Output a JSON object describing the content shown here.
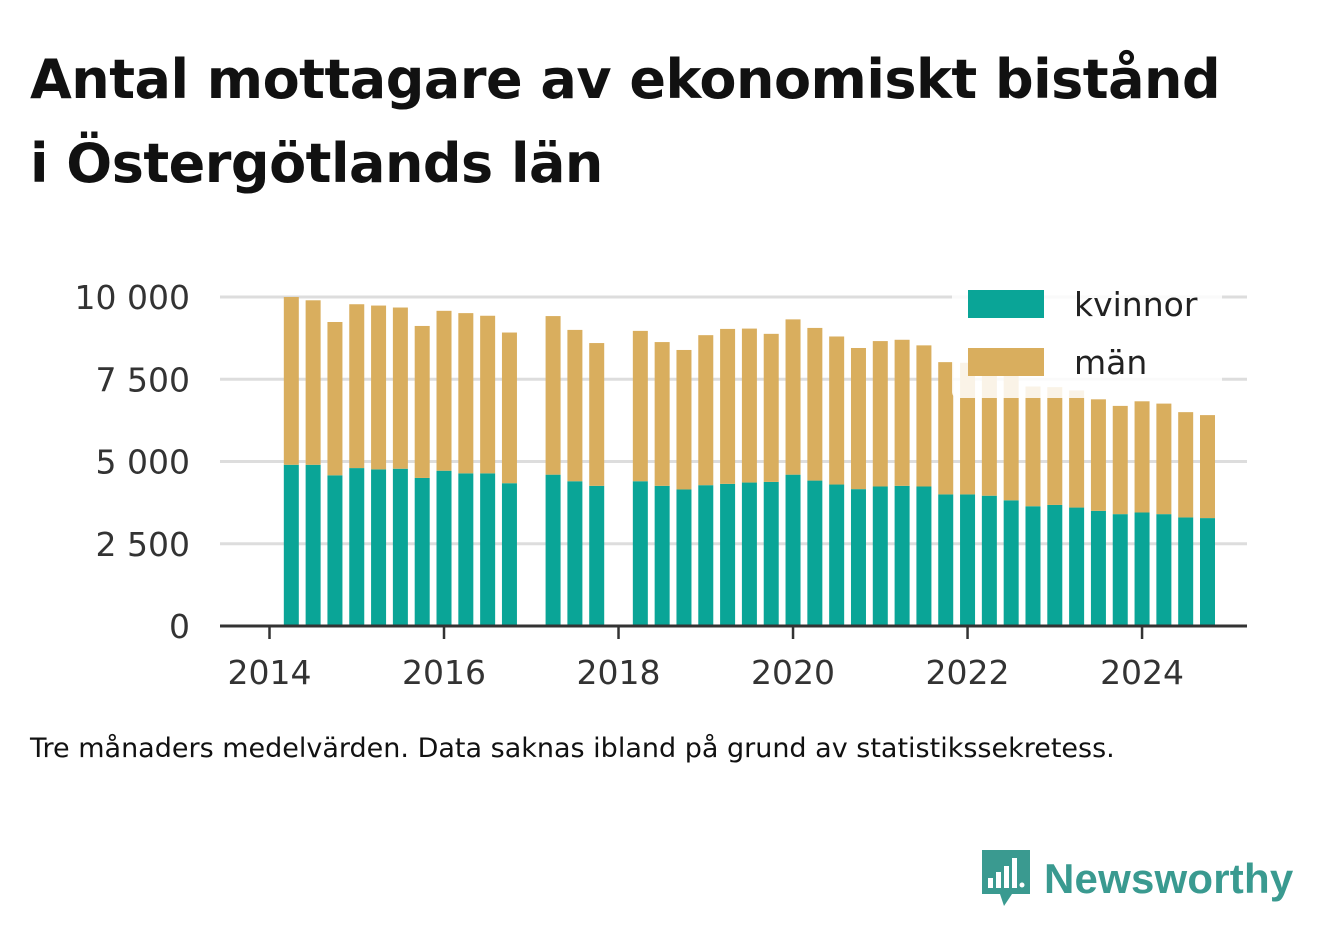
{
  "title_lines": [
    "Antal mottagare av ekonomiskt bistånd",
    "i Östergötlands län"
  ],
  "caption": "Tre månaders medelvärden. Data saknas ibland på grund av statistikssekretess.",
  "brand": {
    "name": "Newsworthy",
    "icon": "newsworthy-logo-icon"
  },
  "colors": {
    "kvinnor": "#0aa597",
    "man": "#d9ae5e",
    "grid": "#dddddd",
    "axis": "#333333",
    "brand": "#3a9a90"
  },
  "chart_data": {
    "type": "bar",
    "stacked": true,
    "title": "Antal mottagare av ekonomiskt bistånd i Östergötlands län",
    "xlabel": "",
    "ylabel": "",
    "ylim": [
      0,
      10000
    ],
    "yticks": [
      0,
      2500,
      5000,
      7500,
      10000
    ],
    "ytick_labels": [
      "0",
      "2 500",
      "5 000",
      "7 500",
      "10 000"
    ],
    "xlim": [
      2014,
      2024.75
    ],
    "xticks": [
      2014,
      2016,
      2018,
      2020,
      2022,
      2024
    ],
    "xtick_labels": [
      "2014",
      "2016",
      "2018",
      "2020",
      "2022",
      "2024"
    ],
    "grid": true,
    "legend": "top-right",
    "x": [
      2014.25,
      2014.5,
      2014.75,
      2015.0,
      2015.25,
      2015.5,
      2015.75,
      2016.0,
      2016.25,
      2016.5,
      2016.75,
      2017.25,
      2017.5,
      2017.75,
      2018.25,
      2018.5,
      2018.75,
      2019.0,
      2019.25,
      2019.5,
      2019.75,
      2020.0,
      2020.25,
      2020.5,
      2020.75,
      2021.0,
      2021.25,
      2021.5,
      2021.75,
      2022.0,
      2022.25,
      2022.5,
      2022.75,
      2023.0,
      2023.25,
      2023.5,
      2023.75,
      2024.0,
      2024.25,
      2024.5,
      2024.75
    ],
    "series": [
      {
        "name": "kvinnor",
        "color": "#0aa597",
        "values": [
          4900,
          4900,
          4580,
          4800,
          4760,
          4780,
          4500,
          4720,
          4640,
          4640,
          4340,
          4600,
          4400,
          4260,
          4400,
          4260,
          4150,
          4280,
          4320,
          4360,
          4380,
          4600,
          4420,
          4300,
          4160,
          4240,
          4260,
          4240,
          4000,
          4000,
          3960,
          3820,
          3640,
          3680,
          3600,
          3500,
          3400,
          3450,
          3400,
          3300,
          3280
        ]
      },
      {
        "name": "män",
        "color": "#d9ae5e",
        "values": [
          5100,
          5000,
          4660,
          4980,
          4980,
          4900,
          4620,
          4860,
          4870,
          4790,
          4580,
          4820,
          4600,
          4340,
          4570,
          4370,
          4240,
          4560,
          4710,
          4680,
          4500,
          4720,
          4640,
          4500,
          4290,
          4420,
          4440,
          4290,
          4020,
          4000,
          3940,
          3880,
          3640,
          3580,
          3560,
          3390,
          3290,
          3380,
          3360,
          3200,
          3130
        ]
      }
    ]
  }
}
